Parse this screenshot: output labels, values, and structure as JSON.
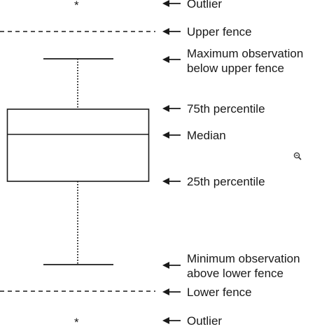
{
  "markers": {
    "outlier_symbol": "*"
  },
  "labels": {
    "outlier_top": "Outlier",
    "upper_fence": "Upper fence",
    "maximum_line1": "Maximum observation",
    "maximum_line2": "below upper fence",
    "p75": "75th percentile",
    "median": "Median",
    "p25": "25th percentile",
    "minimum_line1": "Minimum observation",
    "minimum_line2": "above lower fence",
    "lower_fence": "Lower fence",
    "outlier_bottom": "Outlier"
  },
  "icons": {
    "zoom": "zoom-out-icon"
  },
  "colors": {
    "ink": "#1a1a1a",
    "background": "#ffffff"
  }
}
